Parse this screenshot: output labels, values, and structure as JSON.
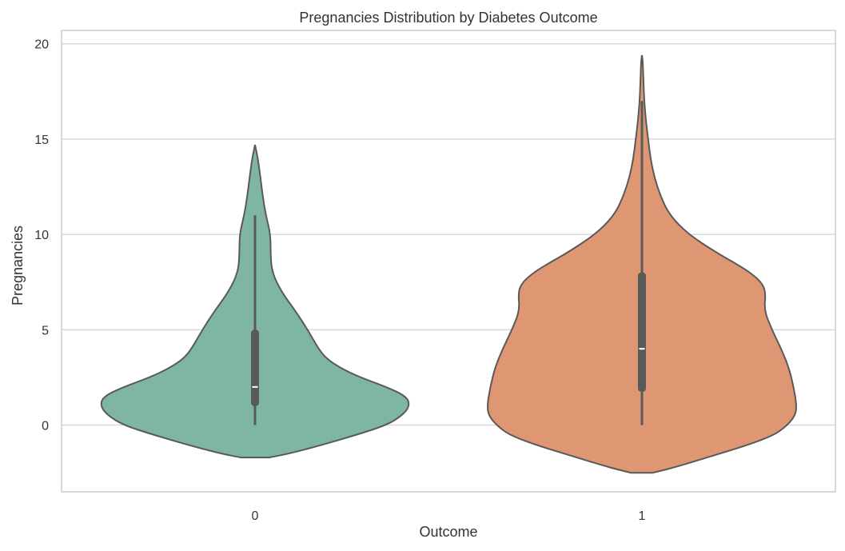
{
  "chart_data": {
    "type": "violin",
    "title": "Pregnancies Distribution by Diabetes Outcome",
    "xlabel": "Outcome",
    "ylabel": "Pregnancies",
    "categories": [
      "0",
      "1"
    ],
    "ylim": [
      -3.5,
      20.7
    ],
    "yticks": [
      0,
      5,
      10,
      15,
      20
    ],
    "grid": "horizontal",
    "violins": [
      {
        "category": "0",
        "color": "#7fb6a1",
        "whisker": [
          0,
          11
        ],
        "q1": 1,
        "median": 2,
        "q3": 5,
        "profile": [
          {
            "y": -1.7,
            "w": 0.09
          },
          {
            "y": -1.5,
            "w": 0.22
          },
          {
            "y": -1.0,
            "w": 0.45
          },
          {
            "y": -0.5,
            "w": 0.66
          },
          {
            "y": 0.0,
            "w": 0.85
          },
          {
            "y": 0.5,
            "w": 0.95
          },
          {
            "y": 1.0,
            "w": 1.0
          },
          {
            "y": 1.5,
            "w": 0.98
          },
          {
            "y": 2.0,
            "w": 0.85
          },
          {
            "y": 2.5,
            "w": 0.68
          },
          {
            "y": 3.0,
            "w": 0.55
          },
          {
            "y": 3.5,
            "w": 0.46
          },
          {
            "y": 4.0,
            "w": 0.41
          },
          {
            "y": 5.0,
            "w": 0.34
          },
          {
            "y": 6.0,
            "w": 0.26
          },
          {
            "y": 7.0,
            "w": 0.17
          },
          {
            "y": 8.0,
            "w": 0.11
          },
          {
            "y": 9.0,
            "w": 0.1
          },
          {
            "y": 10.0,
            "w": 0.1
          },
          {
            "y": 11.0,
            "w": 0.07
          },
          {
            "y": 12.0,
            "w": 0.05
          },
          {
            "y": 13.0,
            "w": 0.035
          },
          {
            "y": 14.0,
            "w": 0.018
          },
          {
            "y": 14.7,
            "w": 0.0
          }
        ]
      },
      {
        "category": "1",
        "color": "#df9672",
        "whisker": [
          0,
          17
        ],
        "q1": 1.75,
        "median": 4,
        "q3": 8,
        "profile": [
          {
            "y": -2.5,
            "w": 0.07
          },
          {
            "y": -2.2,
            "w": 0.22
          },
          {
            "y": -1.5,
            "w": 0.5
          },
          {
            "y": -1.0,
            "w": 0.7
          },
          {
            "y": -0.5,
            "w": 0.86
          },
          {
            "y": 0.0,
            "w": 0.94
          },
          {
            "y": 0.5,
            "w": 0.99
          },
          {
            "y": 1.0,
            "w": 1.0
          },
          {
            "y": 2.0,
            "w": 0.98
          },
          {
            "y": 3.0,
            "w": 0.95
          },
          {
            "y": 4.0,
            "w": 0.9
          },
          {
            "y": 5.0,
            "w": 0.84
          },
          {
            "y": 6.0,
            "w": 0.79
          },
          {
            "y": 7.0,
            "w": 0.8
          },
          {
            "y": 7.5,
            "w": 0.77
          },
          {
            "y": 8.0,
            "w": 0.7
          },
          {
            "y": 8.5,
            "w": 0.6
          },
          {
            "y": 9.0,
            "w": 0.49
          },
          {
            "y": 10.0,
            "w": 0.3
          },
          {
            "y": 11.0,
            "w": 0.18
          },
          {
            "y": 12.0,
            "w": 0.12
          },
          {
            "y": 13.0,
            "w": 0.08
          },
          {
            "y": 14.0,
            "w": 0.055
          },
          {
            "y": 15.0,
            "w": 0.04
          },
          {
            "y": 16.0,
            "w": 0.025
          },
          {
            "y": 17.0,
            "w": 0.015
          },
          {
            "y": 18.0,
            "w": 0.01
          },
          {
            "y": 19.0,
            "w": 0.006
          },
          {
            "y": 19.4,
            "w": 0.0
          }
        ]
      }
    ]
  }
}
